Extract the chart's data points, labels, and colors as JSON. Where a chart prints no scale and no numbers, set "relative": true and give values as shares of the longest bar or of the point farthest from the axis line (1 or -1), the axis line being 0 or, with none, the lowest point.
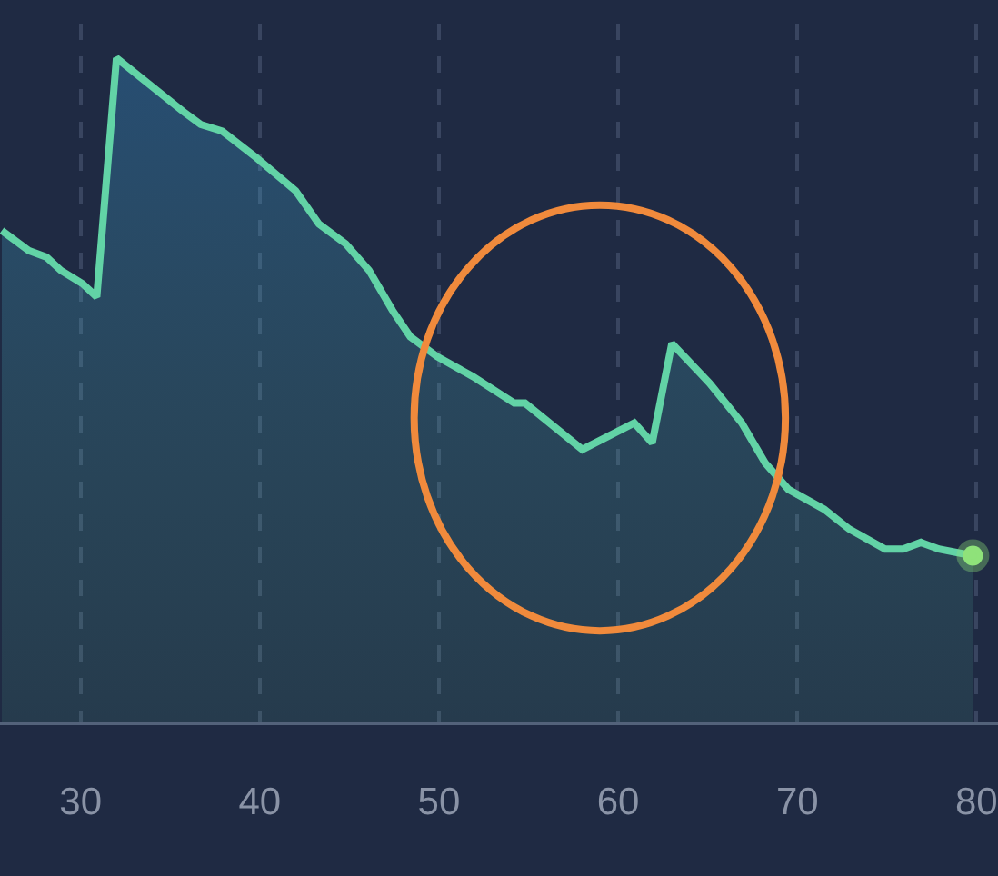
{
  "chart_data": {
    "type": "area",
    "relative": true,
    "xlim": [
      25.5,
      81.2
    ],
    "xticks": [
      30,
      40,
      50,
      60,
      70,
      80
    ],
    "grid": "x",
    "series": [
      {
        "color": "#62d3a6",
        "x": [
          25.6,
          27.1,
          28.1,
          28.9,
          30.1,
          30.9,
          32.0,
          35.7,
          36.7,
          37.9,
          39.8,
          42.0,
          43.3,
          44.8,
          46.1,
          47.4,
          48.4,
          49.9,
          51.9,
          54.2,
          54.8,
          58.0,
          60.9,
          61.9,
          63.0,
          65.1,
          66.9,
          68.2,
          69.5,
          71.5,
          72.9,
          74.9,
          75.9,
          76.9,
          77.9,
          79.8
        ],
        "values": [
          0.74,
          0.71,
          0.7,
          0.68,
          0.66,
          0.64,
          1.0,
          0.92,
          0.9,
          0.89,
          0.85,
          0.8,
          0.75,
          0.72,
          0.68,
          0.62,
          0.58,
          0.55,
          0.52,
          0.48,
          0.48,
          0.41,
          0.45,
          0.42,
          0.57,
          0.51,
          0.45,
          0.39,
          0.35,
          0.32,
          0.29,
          0.26,
          0.26,
          0.27,
          0.26,
          0.25
        ]
      },
      {
        "type": "scatter",
        "color": "#8fe27a",
        "x": [
          79.8
        ],
        "values": [
          0.25
        ]
      }
    ]
  }
}
